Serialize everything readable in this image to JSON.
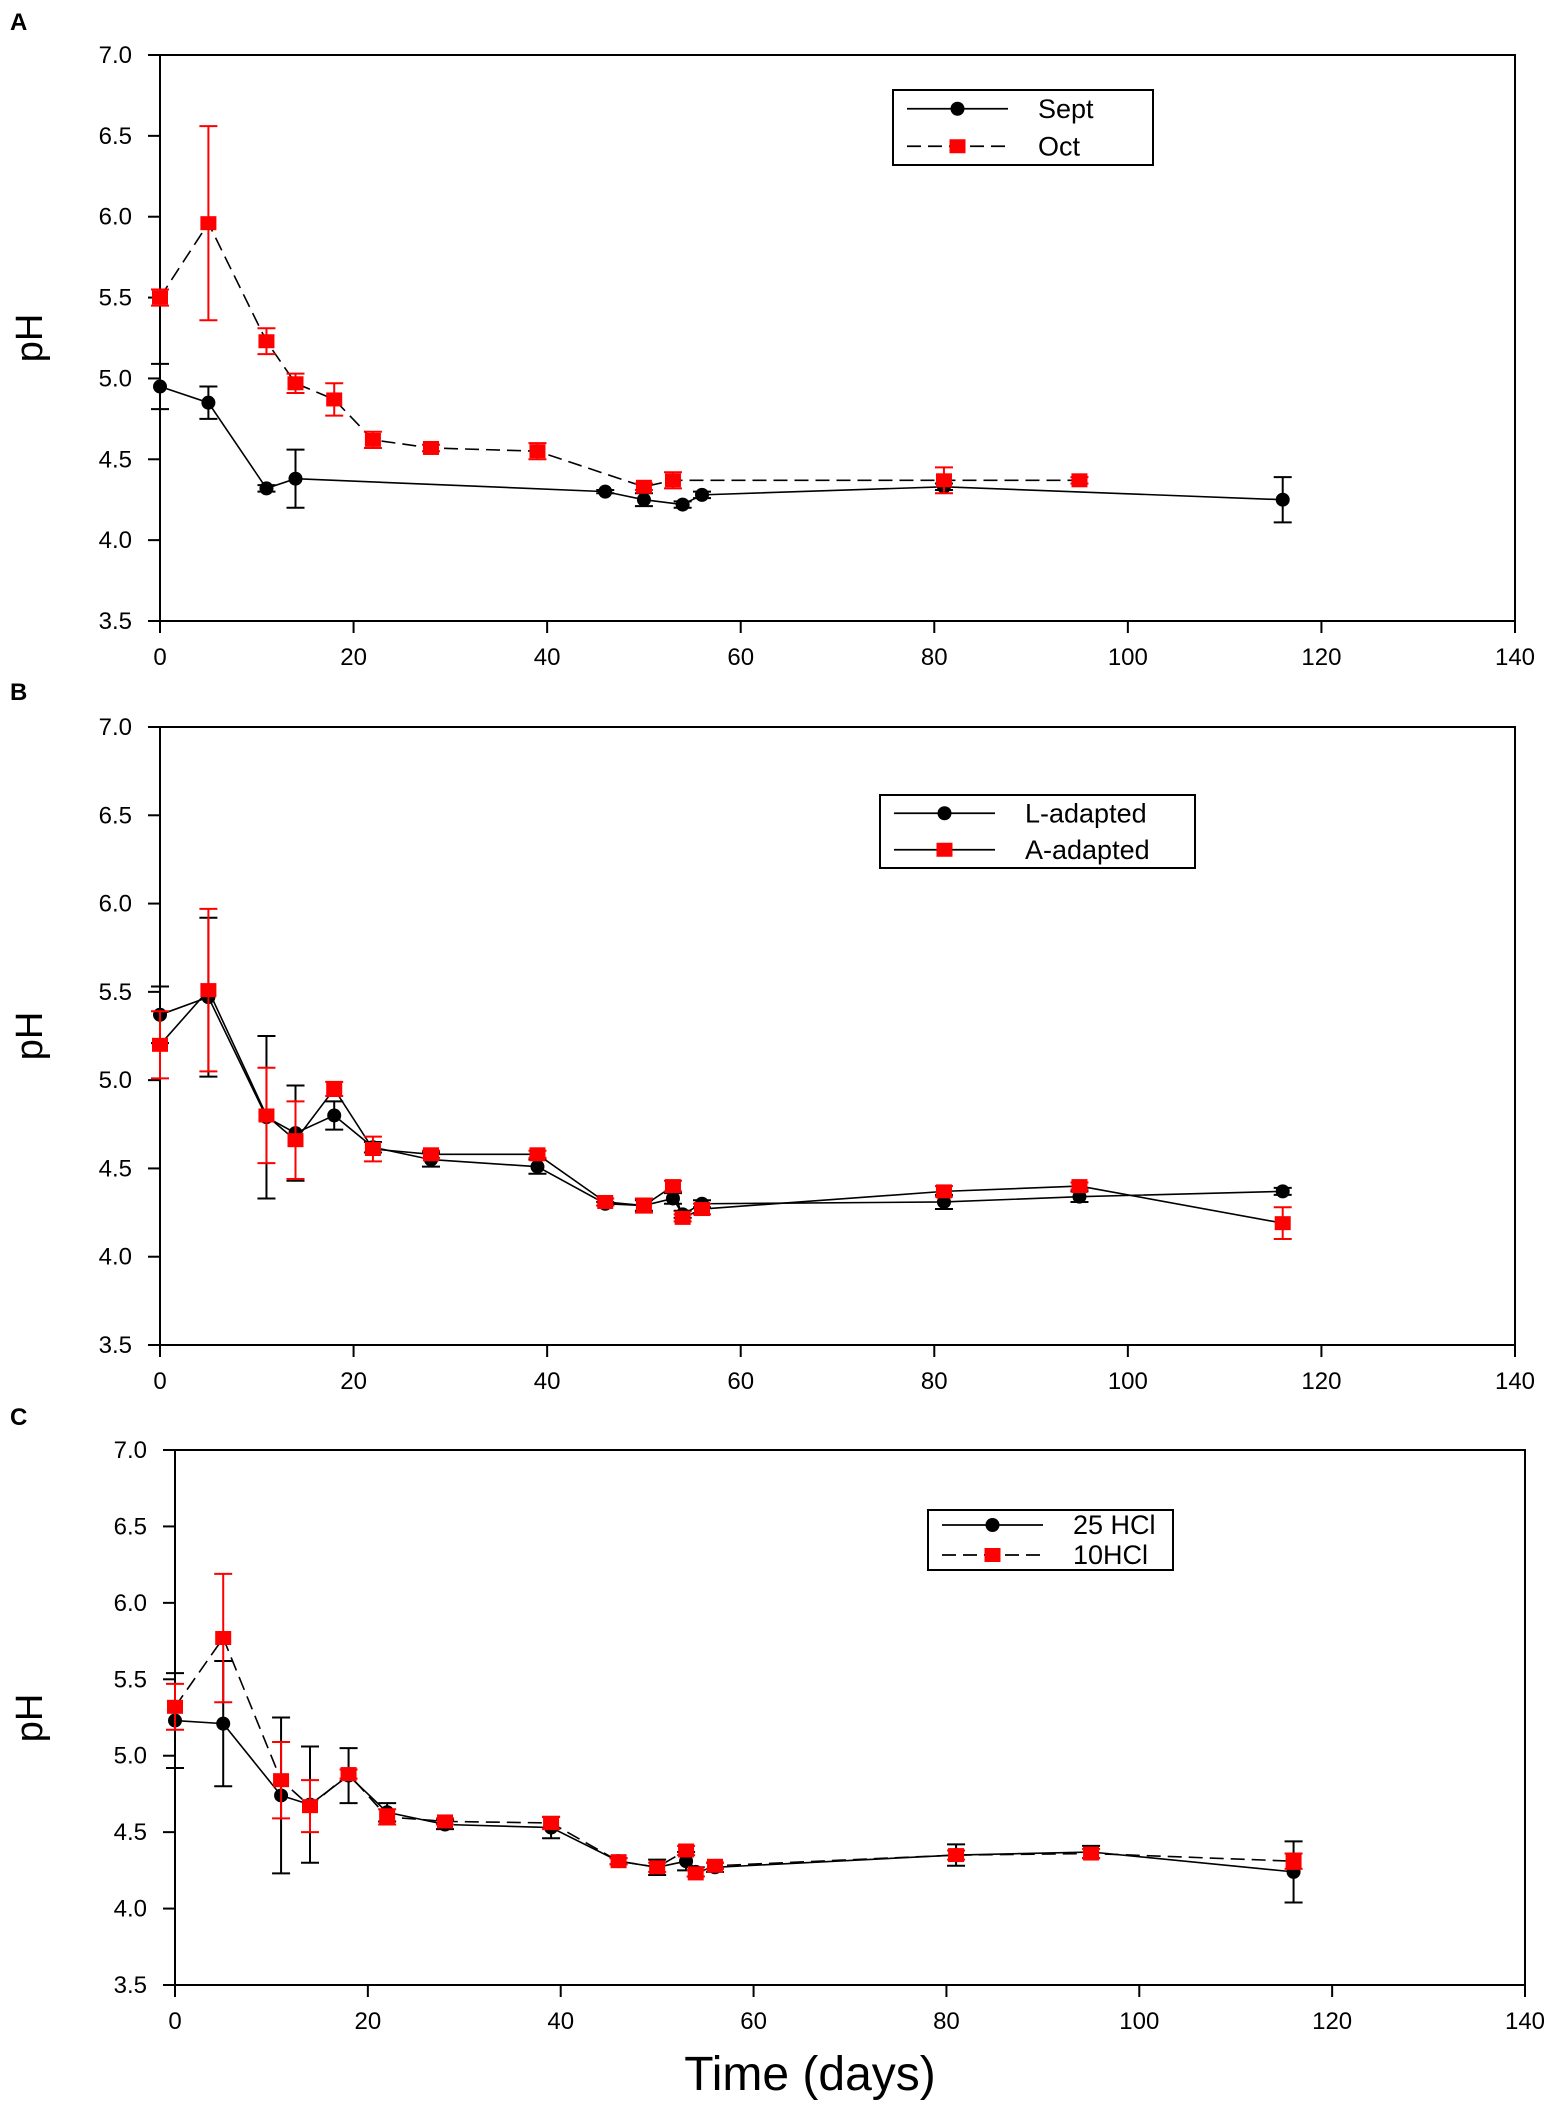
{
  "figure": {
    "x_axis_title": "Time (days)"
  },
  "chart_data": [
    {
      "panel_label": "A",
      "type": "line",
      "ylabel": "pH",
      "xlim": [
        0,
        140
      ],
      "ylim": [
        3.5,
        7.0
      ],
      "xticks": [
        "0",
        "20",
        "40",
        "60",
        "80",
        "100",
        "120",
        "140"
      ],
      "yticks": [
        "3.5",
        "4.0",
        "4.5",
        "5.0",
        "5.5",
        "6.0",
        "6.5",
        "7.0"
      ],
      "legend": {
        "position": "top-right"
      },
      "series": [
        {
          "name": "Sept",
          "color": "#000000",
          "marker": "circle",
          "dash": "solid",
          "points": [
            {
              "x": 0,
              "y": 4.95,
              "err": 0.14
            },
            {
              "x": 5,
              "y": 4.85,
              "err": 0.1
            },
            {
              "x": 11,
              "y": 4.32,
              "err": 0.02
            },
            {
              "x": 14,
              "y": 4.38,
              "err": 0.18
            },
            {
              "x": 46,
              "y": 4.3,
              "err": 0.01
            },
            {
              "x": 50,
              "y": 4.25,
              "err": 0.04
            },
            {
              "x": 54,
              "y": 4.22,
              "err": 0.02
            },
            {
              "x": 56,
              "y": 4.28,
              "err": 0.02
            },
            {
              "x": 81,
              "y": 4.33,
              "err": 0.02
            },
            {
              "x": 116,
              "y": 4.25,
              "err": 0.14
            }
          ]
        },
        {
          "name": "Oct",
          "color": "#ff0000",
          "marker": "square",
          "dash": "dashed",
          "points": [
            {
              "x": 0,
              "y": 5.5,
              "err": 0.05
            },
            {
              "x": 5,
              "y": 5.96,
              "err": 0.6
            },
            {
              "x": 11,
              "y": 5.23,
              "err": 0.08
            },
            {
              "x": 14,
              "y": 4.97,
              "err": 0.06
            },
            {
              "x": 18,
              "y": 4.87,
              "err": 0.1
            },
            {
              "x": 22,
              "y": 4.62,
              "err": 0.05
            },
            {
              "x": 28,
              "y": 4.57,
              "err": 0.02
            },
            {
              "x": 39,
              "y": 4.55,
              "err": 0.05
            },
            {
              "x": 50,
              "y": 4.33,
              "err": 0.02
            },
            {
              "x": 53,
              "y": 4.37,
              "err": 0.05
            },
            {
              "x": 81,
              "y": 4.37,
              "err": 0.08
            },
            {
              "x": 95,
              "y": 4.37,
              "err": 0.02
            }
          ]
        }
      ]
    },
    {
      "panel_label": "B",
      "type": "line",
      "ylabel": "pH",
      "xlim": [
        0,
        140
      ],
      "ylim": [
        3.5,
        7.0
      ],
      "xticks": [
        "0",
        "20",
        "40",
        "60",
        "80",
        "100",
        "120",
        "140"
      ],
      "yticks": [
        "3.5",
        "4.0",
        "4.5",
        "5.0",
        "5.5",
        "6.0",
        "6.5",
        "7.0"
      ],
      "legend": {
        "position": "top-right"
      },
      "series": [
        {
          "name": "L-adapted",
          "color": "#000000",
          "marker": "circle",
          "dash": "solid",
          "points": [
            {
              "x": 0,
              "y": 5.37,
              "err": 0.16
            },
            {
              "x": 5,
              "y": 5.47,
              "err": 0.45
            },
            {
              "x": 11,
              "y": 4.79,
              "err": 0.46
            },
            {
              "x": 14,
              "y": 4.7,
              "err": 0.27
            },
            {
              "x": 18,
              "y": 4.8,
              "err": 0.08
            },
            {
              "x": 22,
              "y": 4.62,
              "err": 0.03
            },
            {
              "x": 28,
              "y": 4.55,
              "err": 0.04
            },
            {
              "x": 39,
              "y": 4.51,
              "err": 0.04
            },
            {
              "x": 46,
              "y": 4.3,
              "err": 0.01
            },
            {
              "x": 50,
              "y": 4.29,
              "err": 0.03
            },
            {
              "x": 53,
              "y": 4.33,
              "err": 0.03
            },
            {
              "x": 54,
              "y": 4.24,
              "err": 0.02
            },
            {
              "x": 56,
              "y": 4.3,
              "err": 0.02
            },
            {
              "x": 81,
              "y": 4.31,
              "err": 0.04
            },
            {
              "x": 95,
              "y": 4.34,
              "err": 0.03
            },
            {
              "x": 116,
              "y": 4.37,
              "err": 0.02
            }
          ]
        },
        {
          "name": "A-adapted",
          "color": "#ff0000",
          "marker": "square",
          "dash": "solid",
          "points": [
            {
              "x": 0,
              "y": 5.2,
              "err": 0.19
            },
            {
              "x": 5,
              "y": 5.51,
              "err": 0.46
            },
            {
              "x": 11,
              "y": 4.8,
              "err": 0.27
            },
            {
              "x": 14,
              "y": 4.66,
              "err": 0.22
            },
            {
              "x": 18,
              "y": 4.95,
              "err": 0.04
            },
            {
              "x": 22,
              "y": 4.61,
              "err": 0.07
            },
            {
              "x": 28,
              "y": 4.58,
              "err": 0.02
            },
            {
              "x": 39,
              "y": 4.58,
              "err": 0.02
            },
            {
              "x": 46,
              "y": 4.31,
              "err": 0.02
            },
            {
              "x": 50,
              "y": 4.29,
              "err": 0.04
            },
            {
              "x": 53,
              "y": 4.4,
              "err": 0.03
            },
            {
              "x": 54,
              "y": 4.22,
              "err": 0.02
            },
            {
              "x": 56,
              "y": 4.27,
              "err": 0.03
            },
            {
              "x": 81,
              "y": 4.37,
              "err": 0.03
            },
            {
              "x": 95,
              "y": 4.4,
              "err": 0.02
            },
            {
              "x": 116,
              "y": 4.19,
              "err": 0.09
            }
          ]
        }
      ]
    },
    {
      "panel_label": "C",
      "type": "line",
      "ylabel": "pH",
      "xlim": [
        0,
        140
      ],
      "ylim": [
        3.5,
        7.0
      ],
      "xticks": [
        "0",
        "20",
        "40",
        "60",
        "80",
        "100",
        "120",
        "140"
      ],
      "yticks": [
        "3.5",
        "4.0",
        "4.5",
        "5.0",
        "5.5",
        "6.0",
        "6.5",
        "7.0"
      ],
      "legend": {
        "position": "top-right"
      },
      "series": [
        {
          "name": "25 HCl",
          "color": "#000000",
          "marker": "circle",
          "dash": "solid",
          "points": [
            {
              "x": 0,
              "y": 5.23,
              "err": 0.31
            },
            {
              "x": 5,
              "y": 5.21,
              "err": 0.41
            },
            {
              "x": 11,
              "y": 4.74,
              "err": 0.51
            },
            {
              "x": 14,
              "y": 4.68,
              "err": 0.38
            },
            {
              "x": 18,
              "y": 4.87,
              "err": 0.18
            },
            {
              "x": 22,
              "y": 4.63,
              "err": 0.06
            },
            {
              "x": 28,
              "y": 4.55,
              "err": 0.03
            },
            {
              "x": 39,
              "y": 4.53,
              "err": 0.07
            },
            {
              "x": 46,
              "y": 4.31,
              "err": 0.02
            },
            {
              "x": 50,
              "y": 4.27,
              "err": 0.05
            },
            {
              "x": 53,
              "y": 4.31,
              "err": 0.06
            },
            {
              "x": 54,
              "y": 4.24,
              "err": 0.03
            },
            {
              "x": 56,
              "y": 4.27,
              "err": 0.03
            },
            {
              "x": 81,
              "y": 4.35,
              "err": 0.07
            },
            {
              "x": 95,
              "y": 4.37,
              "err": 0.04
            },
            {
              "x": 116,
              "y": 4.24,
              "err": 0.2
            }
          ]
        },
        {
          "name": "10HCl",
          "color": "#ff0000",
          "marker": "square",
          "dash": "dashed",
          "points": [
            {
              "x": 0,
              "y": 5.32,
              "err": 0.15
            },
            {
              "x": 5,
              "y": 5.77,
              "err": 0.42
            },
            {
              "x": 11,
              "y": 4.84,
              "err": 0.25
            },
            {
              "x": 14,
              "y": 4.67,
              "err": 0.17
            },
            {
              "x": 18,
              "y": 4.88,
              "err": 0.03
            },
            {
              "x": 22,
              "y": 4.6,
              "err": 0.05
            },
            {
              "x": 28,
              "y": 4.57,
              "err": 0.02
            },
            {
              "x": 39,
              "y": 4.56,
              "err": 0.04
            },
            {
              "x": 46,
              "y": 4.31,
              "err": 0.02
            },
            {
              "x": 50,
              "y": 4.27,
              "err": 0.03
            },
            {
              "x": 53,
              "y": 4.38,
              "err": 0.03
            },
            {
              "x": 54,
              "y": 4.23,
              "err": 0.02
            },
            {
              "x": 56,
              "y": 4.28,
              "err": 0.02
            },
            {
              "x": 81,
              "y": 4.35,
              "err": 0.03
            },
            {
              "x": 95,
              "y": 4.36,
              "err": 0.03
            },
            {
              "x": 116,
              "y": 4.31,
              "err": 0.05
            }
          ]
        }
      ]
    }
  ]
}
